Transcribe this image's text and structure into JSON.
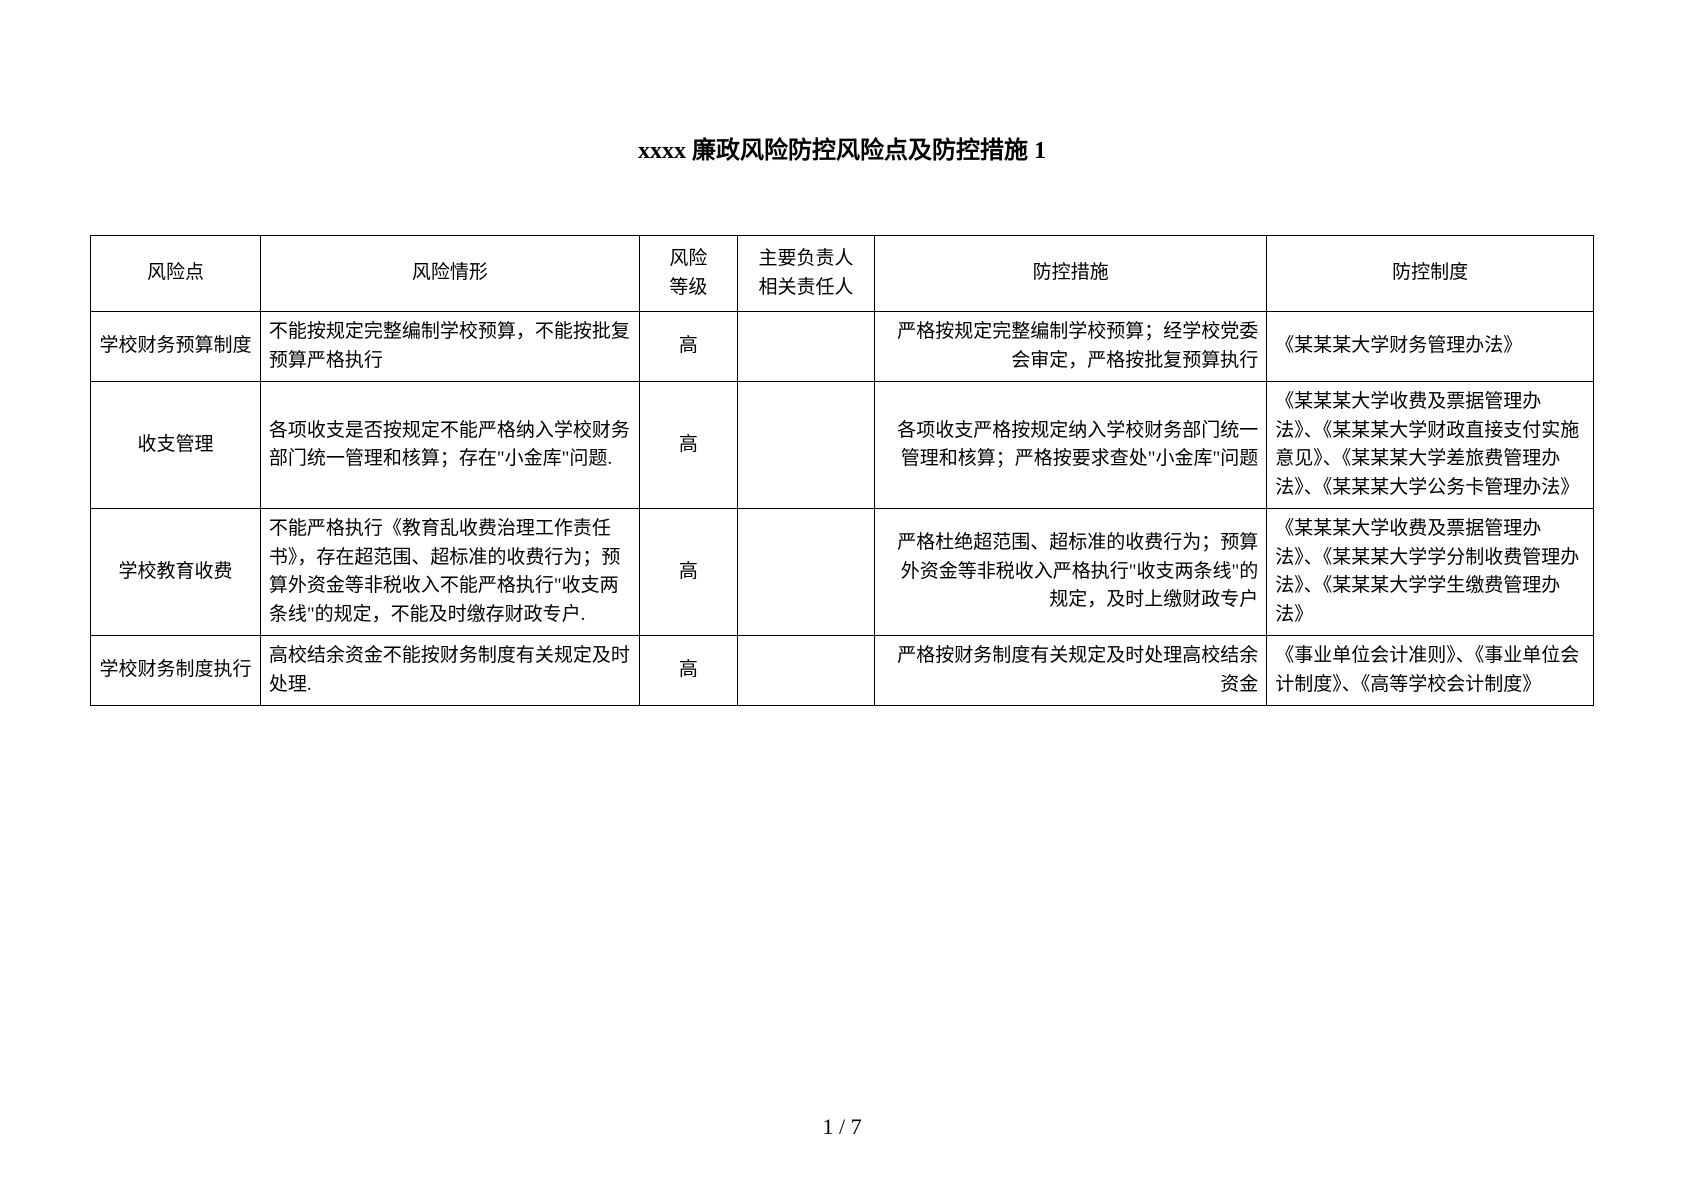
{
  "title": "xxxx 廉政风险防控风险点及防控措施 1",
  "headers": {
    "risk_point": "风险点",
    "risk_situation": "风险情形",
    "risk_level": "风险\n等级",
    "responsible": "主要负责人\n相关责任人",
    "measures": "防控措施",
    "system": "防控制度"
  },
  "rows": [
    {
      "risk_point": "学校财务预算制度",
      "risk_situation": "不能按规定完整编制学校预算，不能按批复预算严格执行",
      "risk_level": "高",
      "responsible": "",
      "measures": "严格按规定完整编制学校预算；经学校党委会审定，严格按批复预算执行",
      "system": "《某某某大学财务管理办法》"
    },
    {
      "risk_point": "收支管理",
      "risk_situation": "各项收支是否按规定不能严格纳入学校财务部门统一管理和核算；存在\"小金库\"问题.",
      "risk_level": "高",
      "responsible": "",
      "measures": "各项收支严格按规定纳入学校财务部门统一管理和核算；严格按要求查处\"小金库\"问题",
      "system": "《某某某大学收费及票据管理办法》、《某某某大学财政直接支付实施意见》、《某某某大学差旅费管理办法》、《某某某大学公务卡管理办法》"
    },
    {
      "risk_point": "学校教育收费",
      "risk_situation": "不能严格执行《教育乱收费治理工作责任书》，存在超范围、超标准的收费行为；预算外资金等非税收入不能严格执行\"收支两条线\"的规定，不能及时缴存财政专户.",
      "risk_level": "高",
      "responsible": "",
      "measures": "严格杜绝超范围、超标准的收费行为；预算外资金等非税收入严格执行\"收支两条线\"的规定，及时上缴财政专户",
      "system": "《某某某大学收费及票据管理办法》、《某某某大学学分制收费管理办法》、《某某某大学学生缴费管理办法》"
    },
    {
      "risk_point": "学校财务制度执行",
      "risk_situation": "高校结余资金不能按财务制度有关规定及时处理.",
      "risk_level": "高",
      "responsible": "",
      "measures": "严格按财务制度有关规定及时处理高校结余资金",
      "system": "《事业单位会计准则》、《事业单位会计制度》、《高等学校会计制度》"
    }
  ],
  "page_current": "1",
  "page_total": "7"
}
